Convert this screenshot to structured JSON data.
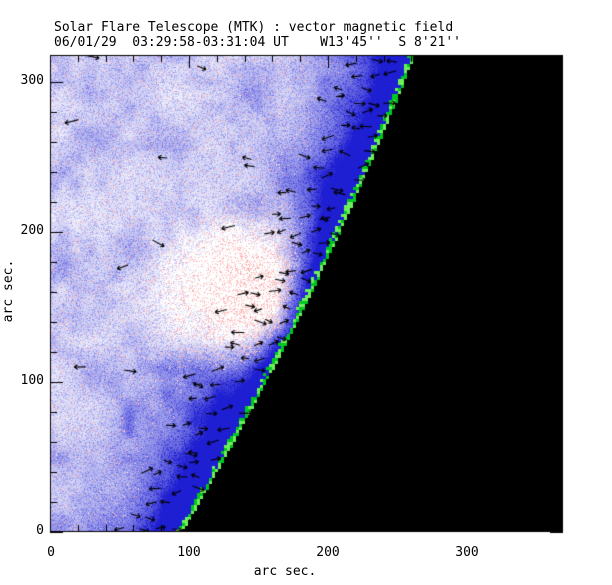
{
  "header": {
    "title": "Solar Flare Telescope (MTK) : vector magnetic field",
    "subtitle": "06/01/29  03:29:58-03:31:04 UT    W13'45''  S 8'21''"
  },
  "chart_data": {
    "type": "heatmap",
    "title": "Solar Flare Telescope (MTK) : vector magnetic field",
    "subtitle": "06/01/29  03:29:58-03:31:04 UT    W13'45''  S 8'21''",
    "xlabel": "arc sec.",
    "ylabel": "arc sec.",
    "xlim": [
      0,
      369
    ],
    "ylim": [
      0,
      318
    ],
    "x_ticks": [
      "0",
      "100",
      "200",
      "300"
    ],
    "y_ticks": [
      "0",
      "100",
      "200",
      "300"
    ],
    "minor_tick_step": 20,
    "grid": false,
    "legend": false,
    "colors": {
      "background": "#ffffff",
      "quiet_disk": "#e8e8fb",
      "field_patch_blue": "#9a9aee",
      "limb_band_blue": "#2e2ed2",
      "limb_contour_green": "#00c822",
      "off_limb_sky": "#000000",
      "vector_arrows": "#000000",
      "bright_region_pink": "#fcb9b9"
    },
    "limb_contour_arcsec": [
      [
        93,
        0
      ],
      [
        115,
        34
      ],
      [
        136,
        68
      ],
      [
        154,
        100
      ],
      [
        182,
        150
      ],
      [
        207,
        200
      ],
      [
        231,
        250
      ],
      [
        253,
        300
      ],
      [
        261,
        318
      ]
    ],
    "annotations": {
      "solar_disk_region": "speckled blue/white magnetogram signal on disk (left of limb)",
      "off_limb_region": "solid black sky right of the green limb contour",
      "bright_region_arcsec": [
        147,
        158
      ],
      "vector_field": "short black arrows; dense along the limb, sparse on the disk"
    }
  }
}
